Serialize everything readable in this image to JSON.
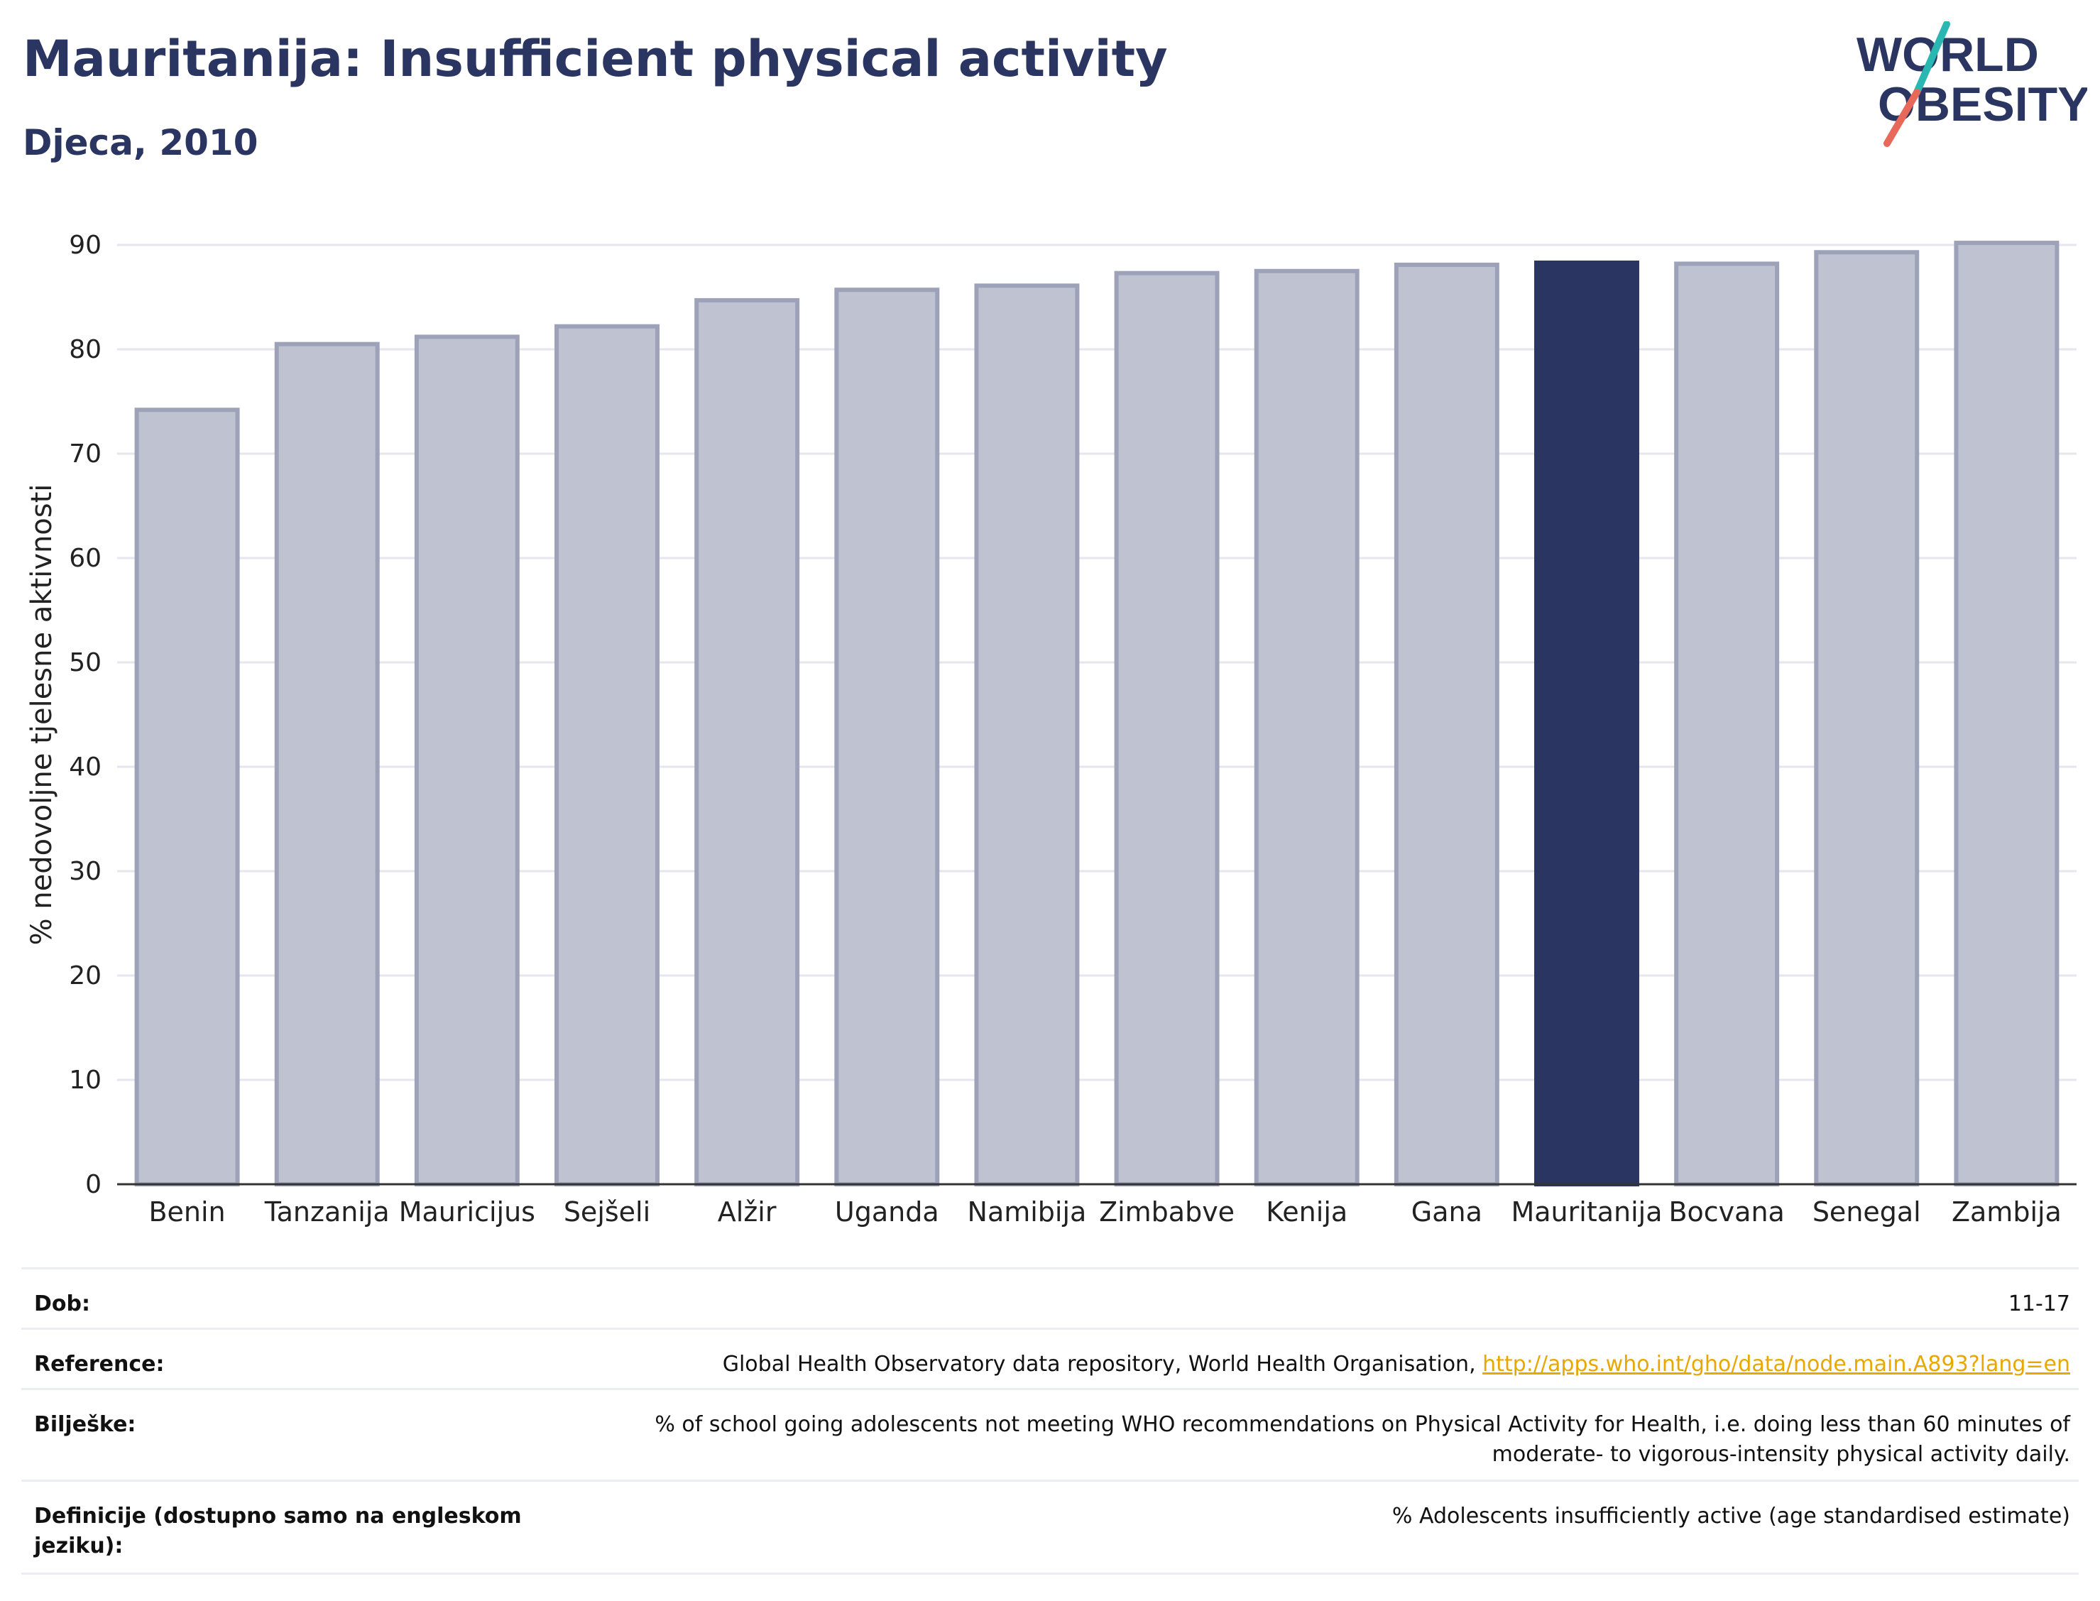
{
  "header": {
    "title": "Mauritanija: Insufficient physical activity",
    "subtitle": "Djeca, 2010"
  },
  "logo": {
    "line1": "WORLD",
    "line2": "OBESITY"
  },
  "chart_data": {
    "type": "bar",
    "ylabel": "% nedovoljne tjelesne aktivnosti",
    "ylim": [
      0,
      90
    ],
    "yticks": [
      0,
      10,
      20,
      30,
      40,
      50,
      60,
      70,
      80,
      90
    ],
    "grid": true,
    "categories": [
      "Benin",
      "Tanzanija",
      "Mauricijus",
      "Sejšeli",
      "Alžir",
      "Uganda",
      "Namibija",
      "Zimbabve",
      "Kenija",
      "Gana",
      "Mauritanija",
      "Bocvana",
      "Senegal",
      "Zambija"
    ],
    "values": [
      74.2,
      80.5,
      81.2,
      82.2,
      84.7,
      85.7,
      86.1,
      87.3,
      87.5,
      88.1,
      88.3,
      88.2,
      89.3,
      90.2
    ],
    "highlight": "Mauritanija",
    "colors": {
      "bar": "#bfc2d0",
      "bar_border": "#9da2b8",
      "highlight": "#2a3561",
      "grid": "#e6e6ee",
      "axis": "#333333"
    }
  },
  "info": {
    "rows": [
      {
        "label": "Dob:",
        "value": "11-17"
      },
      {
        "label": "Reference:",
        "value": "Global Health Observatory data repository, World Health Organisation, ",
        "link": "http://apps.who.int/gho/data/node.main.A893?lang=en"
      },
      {
        "label": "Bilješke:",
        "value": "% of school going adolescents not meeting WHO recommendations on Physical Activity for Health, i.e. doing less than 60 minutes of moderate- to vigorous-intensity physical activity daily."
      },
      {
        "label": "Definicije (dostupno samo na engleskom jeziku):",
        "value": "% Adolescents insufficiently active (age standardised estimate)"
      }
    ]
  }
}
